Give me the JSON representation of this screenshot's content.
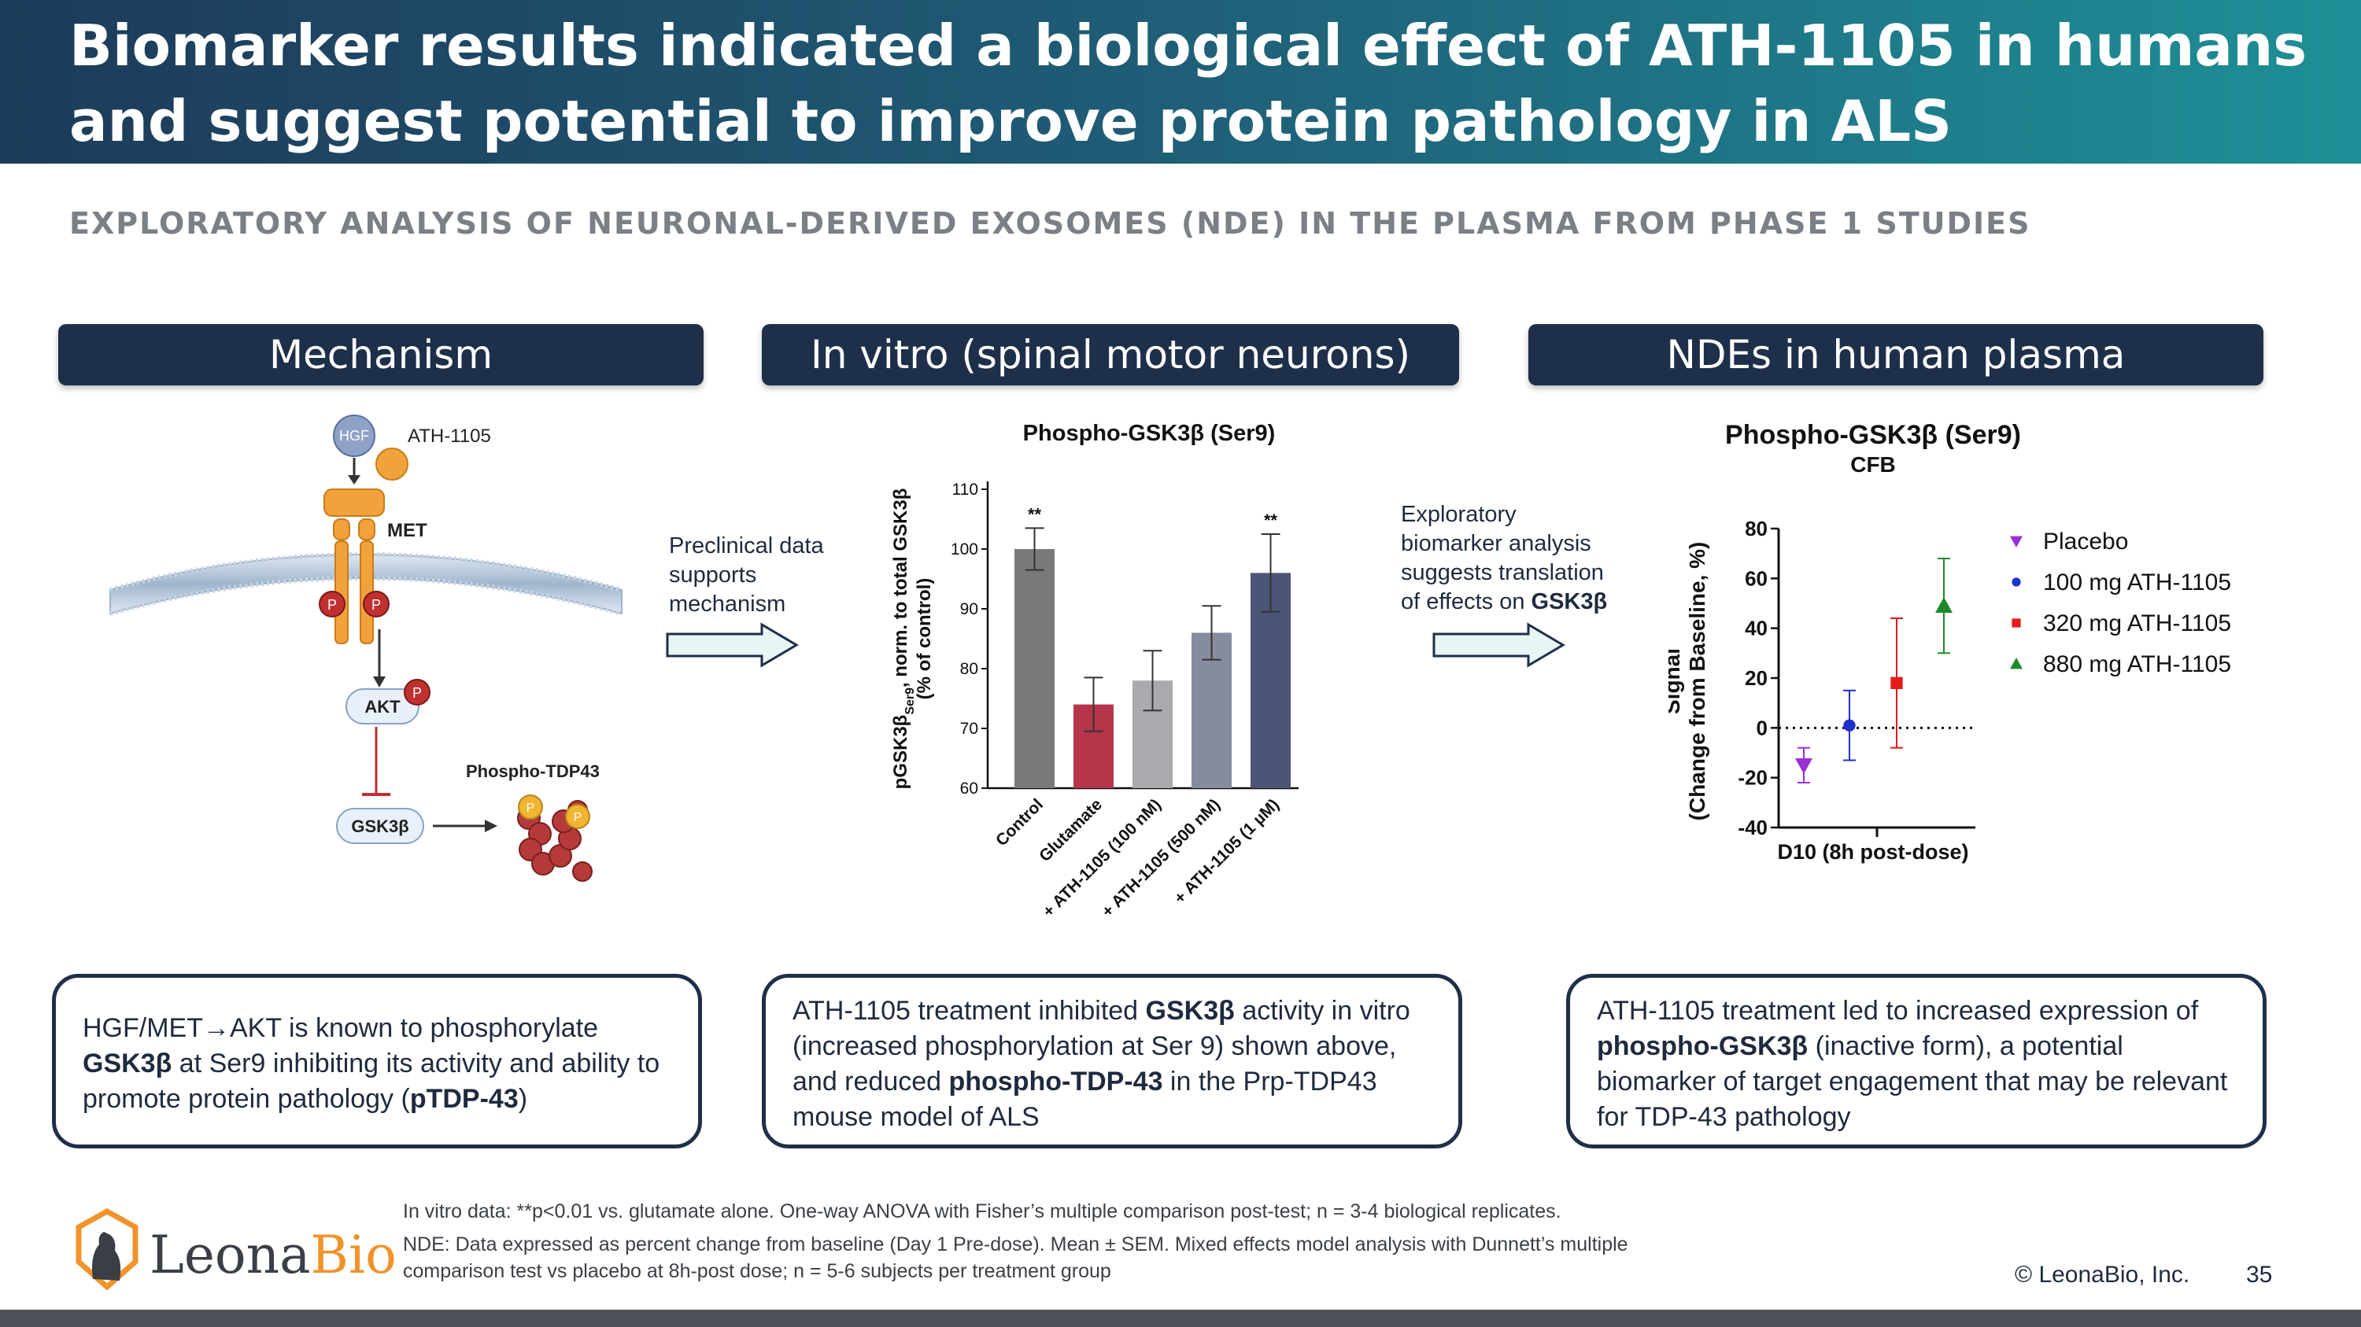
{
  "header": {
    "title": "Biomarker results indicated a biological effect of ATH-1105 in humans\nand suggest potential to improve protein pathology in ALS"
  },
  "subtitle": "EXPLORATORY ANALYSIS OF NEURONAL-DERIVED EXOSOMES (NDE) IN THE PLASMA FROM PHASE 1 STUDIES",
  "panels": {
    "mechanism": {
      "heading": "Mechanism"
    },
    "invitro": {
      "heading": "In vitro (spinal motor neurons)"
    },
    "nde": {
      "heading": "NDEs in human plasma"
    }
  },
  "diagram": {
    "hgf": "HGF",
    "drug": "ATH-1105",
    "receptor": "MET",
    "p": "P",
    "akt": "AKT",
    "gsk": "GSK3β",
    "ptdp": "Phospho-TDP43"
  },
  "arrow1": {
    "line1": "Preclinical data",
    "line2": "supports",
    "line3": "mechanism"
  },
  "arrow2": {
    "line1": "Exploratory",
    "line2": "biomarker analysis",
    "line3": "suggests translation",
    "line4_pre": "of effects on ",
    "line4_bold": "GSK3β"
  },
  "boxes": {
    "mechanism": {
      "a": "HGF/MET",
      "arrow": "→",
      "b": "AKT is known to phosphorylate",
      "c": "GSK3β",
      "d": " at Ser9 inhibiting its activity and ability to promote protein pathology (",
      "e": "pTDP-43",
      "f": ")"
    },
    "invitro": {
      "a": "ATH-1105 treatment inhibited ",
      "b": "GSK3β",
      "c": " activity in vitro (increased phosphorylation at Ser 9) shown above, and reduced ",
      "d": "phospho-TDP-43",
      "e": " in the Prp-TDP43 mouse model of ALS"
    },
    "nde": {
      "a": "ATH-1105 treatment led to increased expression of ",
      "b": "phospho-GSK3β",
      "c": " (inactive form), a potential biomarker of target engagement that may be relevant for TDP-43 pathology"
    }
  },
  "notes": {
    "line1": "In vitro data: **p<0.01 vs. glutamate alone. One-way ANOVA with Fisher’s multiple comparison post-test;  n = 3-4 biological replicates.",
    "line2": "NDE: Data expressed as percent change from baseline (Day 1 Pre-dose). Mean ± SEM. Mixed effects model analysis with Dunnett’s multiple",
    "line3": "comparison test vs placebo at 8h-post dose; n = 5-6 subjects per treatment group"
  },
  "logo": {
    "text1": "Leona",
    "text2": "Bio"
  },
  "copyright": "© LeonaBio, Inc.",
  "page_number": "35",
  "colors": {
    "navy": "#1e2f49",
    "teal": "#1e8f96"
  },
  "chart_data": [
    {
      "type": "bar",
      "title": "Phospho-GSK3β (Ser9)",
      "ylabel_main": "pGSK3β",
      "ylabel_sub": "Ser9",
      "ylabel_rest": ", norm. to total GSK3β",
      "ylabel_line2": "(% of control)",
      "ylim": [
        60,
        110
      ],
      "yticks": [
        "60",
        "70",
        "80",
        "90",
        "100",
        "110"
      ],
      "categories": [
        "Control",
        "Glutamate",
        "+ ATH-1105 (100 nM)",
        "+ ATH-1105 (500 nM)",
        "+ ATH-1105 (1 µM)"
      ],
      "values": [
        100,
        74,
        78,
        86,
        96
      ],
      "errors": [
        3.5,
        4.5,
        5,
        4.5,
        6.5
      ],
      "bar_colors": [
        "#7a7a7a",
        "#b5354a",
        "#a9a9ae",
        "#868c9e",
        "#4b5577"
      ],
      "significance": [
        "**",
        "",
        "",
        "",
        "**"
      ]
    },
    {
      "type": "scatter",
      "title": "Phospho-GSK3β (Ser9)",
      "subtitle": "CFB",
      "ylabel_line1": "Signal",
      "ylabel_line2": "(Change from Baseline, %)",
      "xlabel": "D10 (8h post-dose)",
      "ylim": [
        -40,
        80
      ],
      "yticks": [
        "-40",
        "-20",
        "0",
        "20",
        "40",
        "60",
        "80"
      ],
      "series": [
        {
          "name": "Placebo",
          "value": -15,
          "err_low": -22,
          "err_high": -8,
          "color": "#9b30d6",
          "marker": "triangle-down"
        },
        {
          "name": "100 mg ATH-1105",
          "value": 1,
          "err_low": -13,
          "err_high": 15,
          "color": "#1f2fd1",
          "marker": "circle"
        },
        {
          "name": "320 mg ATH-1105",
          "value": 18,
          "err_low": -8,
          "err_high": 44,
          "color": "#e31b1b",
          "marker": "square"
        },
        {
          "name": "880 mg ATH-1105",
          "value": 49,
          "err_low": 30,
          "err_high": 68,
          "color": "#1c8a2a",
          "marker": "triangle-up"
        }
      ]
    }
  ]
}
